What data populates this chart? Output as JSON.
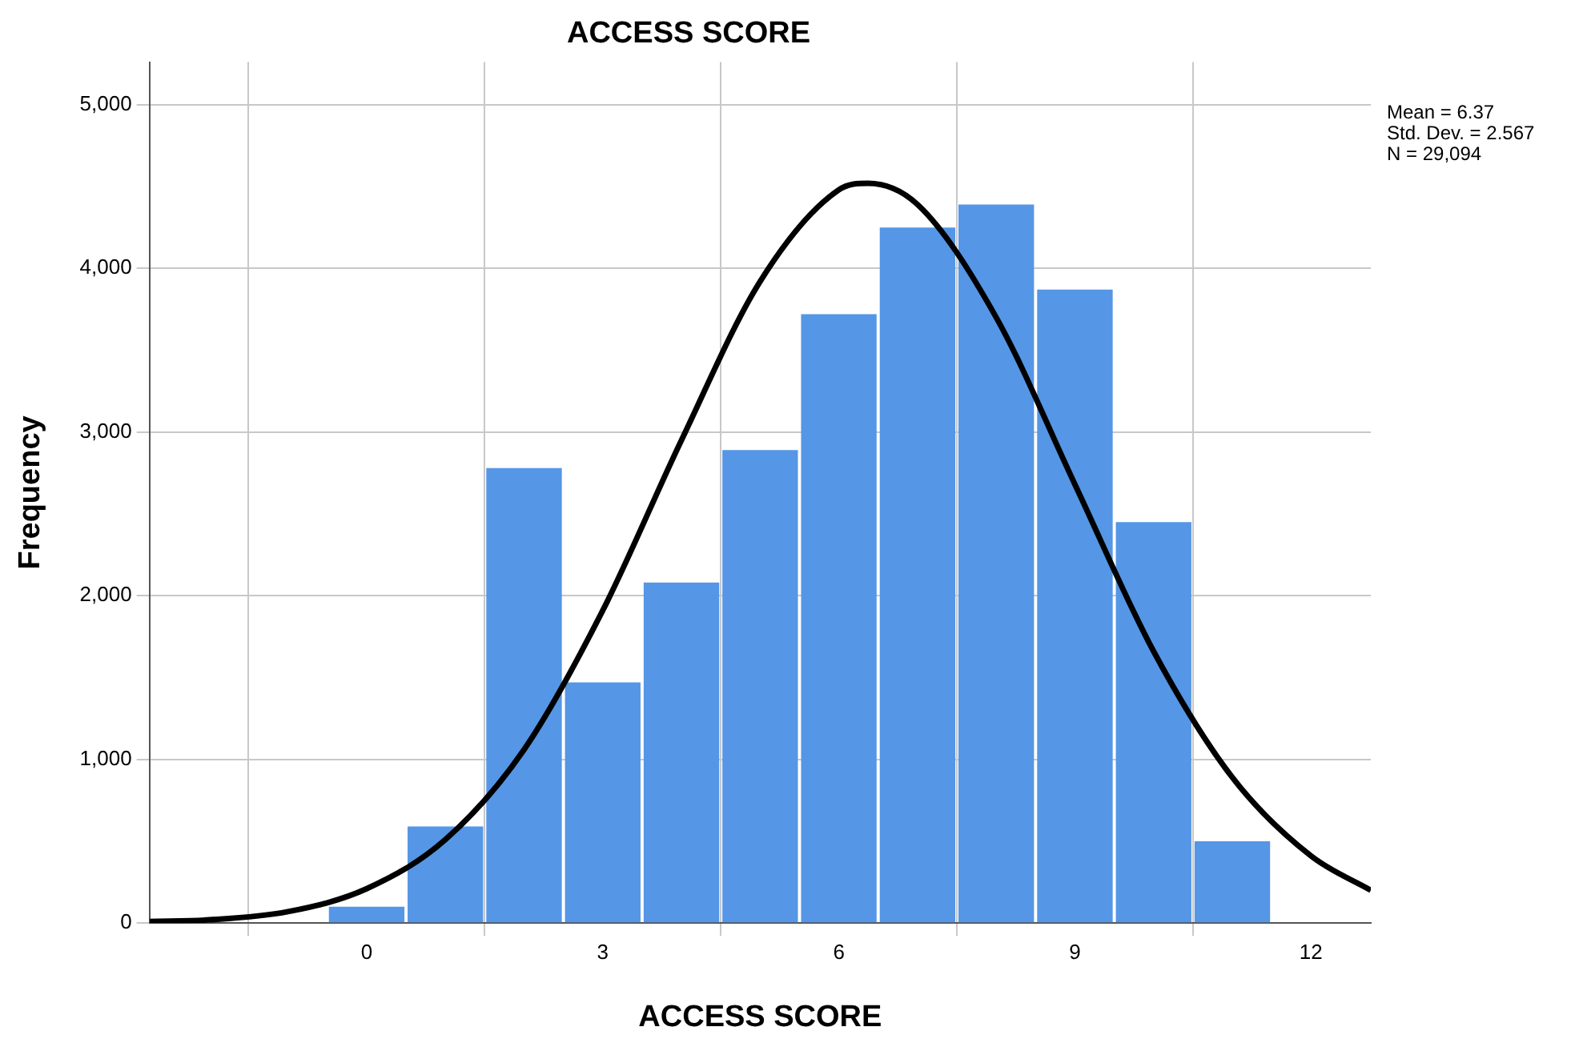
{
  "chart_data": {
    "type": "histogram",
    "title": "ACCESS SCORE",
    "xlabel": "ACCESS SCORE",
    "ylabel": "Frequency",
    "bins": [
      -0.5,
      0.5,
      1.5,
      2.5,
      3.5,
      4.5,
      5.5,
      6.5,
      7.5,
      8.5,
      9.5,
      10.5,
      11.5
    ],
    "values": [
      100,
      590,
      2780,
      1470,
      2080,
      2890,
      3720,
      4250,
      4390,
      3870,
      2450,
      500
    ],
    "color": "#5596e6",
    "series": [
      {
        "type": "line",
        "color": "#000000",
        "marker": "none",
        "line_style": "solid",
        "x": [
          -2.76,
          -2,
          -1,
          0,
          1,
          2,
          3,
          4,
          5,
          6,
          6.37,
          7,
          8,
          9,
          10,
          11,
          12,
          12.76
        ],
        "values": [
          10,
          20,
          70,
          210,
          510,
          1060,
          1910,
          2950,
          3920,
          4480,
          4520,
          4390,
          3700,
          2680,
          1660,
          890,
          410,
          200
        ]
      }
    ],
    "xlim": [
      -2.76,
      12.76
    ],
    "xticks": [
      0,
      3,
      6,
      9,
      12
    ],
    "ylim": [
      0,
      5260
    ],
    "yticks": [
      0,
      {
        "value": 1000,
        "label": "1,000"
      },
      {
        "value": 2000,
        "label": "2,000"
      },
      {
        "value": 3000,
        "label": "3,000"
      },
      {
        "value": 4000,
        "label": "4,000"
      },
      {
        "value": 5000,
        "label": "5,000"
      }
    ],
    "grid": true,
    "legend": false,
    "annotations": [
      "Mean = 6.37",
      "Std. Dev. = 2.567",
      "N = 29,094"
    ]
  }
}
